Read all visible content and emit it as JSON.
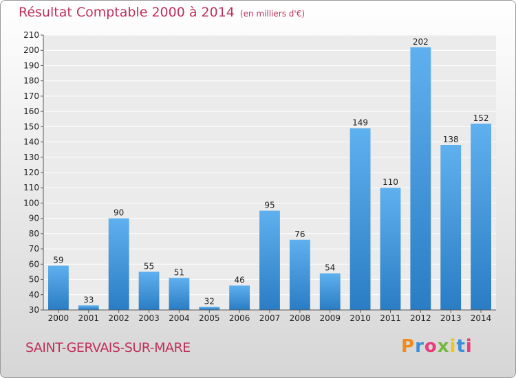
{
  "header": {
    "title": "Résultat Comptable 2000 à 2014",
    "unit": "(en milliers d'€)"
  },
  "footer": {
    "commune": "SAINT-GERVAIS-SUR-MARE",
    "logo": "Proxiti",
    "logo_colors": [
      "#f08a1c",
      "#3a8fd6",
      "#e63d7a",
      "#74b83f",
      "#f0c419",
      "#3a8fd6",
      "#e63d7a"
    ]
  },
  "chart_data": {
    "type": "bar",
    "title": "Résultat Comptable 2000 à 2014",
    "subtitle": "(en milliers d'€)",
    "categories": [
      "2000",
      "2001",
      "2002",
      "2003",
      "2004",
      "2005",
      "2006",
      "2007",
      "2008",
      "2009",
      "2010",
      "2011",
      "2012",
      "2013",
      "2014"
    ],
    "values": [
      59,
      33,
      90,
      55,
      51,
      32,
      46,
      95,
      76,
      54,
      149,
      110,
      202,
      138,
      152
    ],
    "ylim": [
      30,
      210
    ],
    "yticks": [
      30,
      40,
      50,
      60,
      70,
      80,
      90,
      100,
      110,
      120,
      130,
      140,
      150,
      160,
      170,
      180,
      190,
      200,
      210
    ],
    "grid": true,
    "bar_color": "#3d97de"
  }
}
